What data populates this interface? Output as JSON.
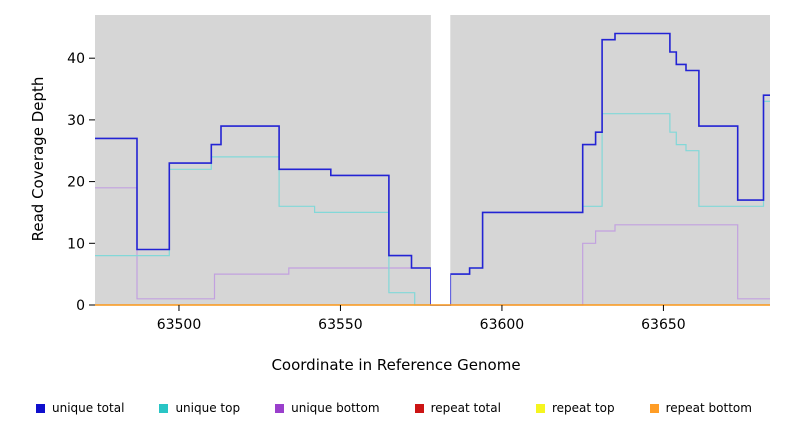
{
  "chart_data": {
    "type": "line",
    "subtype": "step-coverage",
    "title": "",
    "xlabel": "Coordinate in Reference Genome",
    "ylabel": "Read Coverage Depth",
    "xlim": [
      63474,
      63683
    ],
    "ylim": [
      0,
      47
    ],
    "xticks": [
      63500,
      63550,
      63600,
      63650
    ],
    "yticks": [
      0,
      10,
      20,
      30,
      40
    ],
    "grid": false,
    "legend_position": "bottom",
    "plot_bg": "#d6d6d6",
    "axis_color": "#000000",
    "gap_region": [
      63578,
      63584
    ],
    "series": [
      {
        "name": "unique total",
        "color": "#2323d4",
        "swatch": "#0f0fcd",
        "width": 1.6,
        "points": [
          [
            63474,
            27
          ],
          [
            63487,
            9
          ],
          [
            63497,
            23
          ],
          [
            63510,
            26
          ],
          [
            63513,
            29
          ],
          [
            63531,
            22
          ],
          [
            63547,
            21
          ],
          [
            63565,
            8
          ],
          [
            63572,
            6
          ],
          [
            63578,
            0
          ],
          [
            63584,
            5
          ],
          [
            63590,
            6
          ],
          [
            63594,
            15
          ],
          [
            63625,
            26
          ],
          [
            63629,
            28
          ],
          [
            63631,
            43
          ],
          [
            63635,
            44
          ],
          [
            63652,
            41
          ],
          [
            63654,
            39
          ],
          [
            63657,
            38
          ],
          [
            63661,
            29
          ],
          [
            63673,
            17
          ],
          [
            63681,
            34
          ],
          [
            63683,
            34
          ]
        ]
      },
      {
        "name": "unique top",
        "color": "#82d8d8",
        "swatch": "#29c5c5",
        "width": 1.2,
        "points": [
          [
            63474,
            8
          ],
          [
            63497,
            22
          ],
          [
            63510,
            24
          ],
          [
            63531,
            16
          ],
          [
            63542,
            15
          ],
          [
            63565,
            2
          ],
          [
            63573,
            0
          ],
          [
            63584,
            5
          ],
          [
            63590,
            6
          ],
          [
            63594,
            15
          ],
          [
            63625,
            16
          ],
          [
            63631,
            31
          ],
          [
            63652,
            28
          ],
          [
            63654,
            26
          ],
          [
            63657,
            25
          ],
          [
            63661,
            16
          ],
          [
            63681,
            33
          ],
          [
            63683,
            33
          ]
        ]
      },
      {
        "name": "unique bottom",
        "color": "#c2a1df",
        "swatch": "#9a3fcc",
        "width": 1.2,
        "points": [
          [
            63474,
            19
          ],
          [
            63487,
            1
          ],
          [
            63511,
            5
          ],
          [
            63534,
            6
          ],
          [
            63578,
            0
          ],
          [
            63625,
            10
          ],
          [
            63629,
            12
          ],
          [
            63635,
            13
          ],
          [
            63673,
            1
          ],
          [
            63683,
            1
          ]
        ]
      },
      {
        "name": "repeat total",
        "color": "#cc1414",
        "swatch": "#cc1414",
        "width": 1.2,
        "points": [
          [
            63474,
            0
          ],
          [
            63683,
            0
          ]
        ]
      },
      {
        "name": "repeat top",
        "color": "#f5f51f",
        "swatch": "#f5f51f",
        "width": 1.2,
        "points": [
          [
            63474,
            0
          ],
          [
            63683,
            0
          ]
        ]
      },
      {
        "name": "repeat bottom",
        "color": "#ff9d26",
        "swatch": "#ff9d26",
        "width": 1.2,
        "points": [
          [
            63474,
            0
          ],
          [
            63683,
            0
          ]
        ]
      }
    ]
  }
}
